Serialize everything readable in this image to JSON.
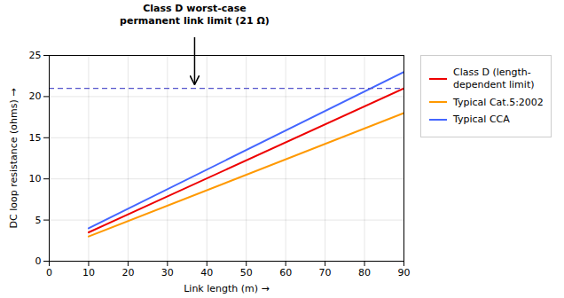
{
  "chart_data": {
    "type": "line",
    "x": [
      10,
      90
    ],
    "series": [
      {
        "name": "Class D (length-\ndependent limit)",
        "color": "#ee0000",
        "values": [
          3.5,
          21.0
        ]
      },
      {
        "name": "Typical Cat.5:2002",
        "color": "#ff9900",
        "values": [
          3.0,
          18.0
        ]
      },
      {
        "name": "Typical CCA",
        "color": "#4466ff",
        "values": [
          4.0,
          23.0
        ]
      }
    ],
    "hline": {
      "y": 21.0,
      "color": "#5555cc",
      "line_style": "dashed"
    },
    "annotation": {
      "text": "Class D worst-case\npermanent link limit (21 Ω)",
      "x": 37,
      "y": 21.5
    },
    "xlabel": "Link length (m)",
    "ylabel": "DC loop resistance (ohms)",
    "xlim": [
      0,
      90
    ],
    "ylim": [
      0,
      25
    ],
    "xticks": [
      0,
      10,
      20,
      30,
      40,
      50,
      60,
      70,
      80,
      90
    ],
    "yticks": [
      0,
      5,
      10,
      15,
      20,
      25
    ],
    "grid": true,
    "legend": "right"
  }
}
